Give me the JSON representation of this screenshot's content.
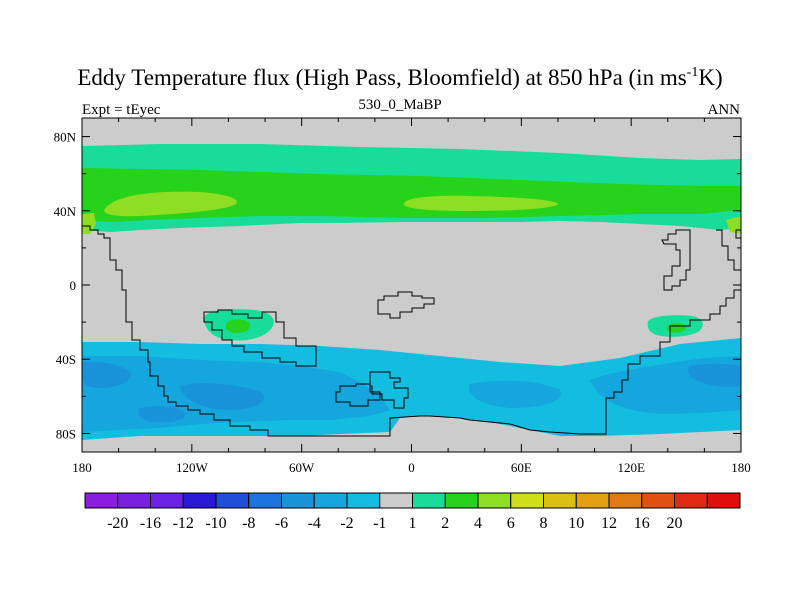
{
  "title": {
    "before_sup": "Eddy Temperature flux (High Pass, Bloomfield) at 850 hPa (in ms",
    "sup": "-1",
    "after_sup": "K)"
  },
  "subtitle_left": "Expt = tEyec",
  "subtitle_center": "530_0_MaBP",
  "subtitle_right": "ANN",
  "map": {
    "lon_range": [
      -180,
      180
    ],
    "lat_range": [
      -90,
      90
    ],
    "x_ticks": [
      {
        "lon": -180,
        "label": "180"
      },
      {
        "lon": -120,
        "label": "120W"
      },
      {
        "lon": -60,
        "label": "60W"
      },
      {
        "lon": 0,
        "label": "0"
      },
      {
        "lon": 60,
        "label": "60E"
      },
      {
        "lon": 120,
        "label": "120E"
      },
      {
        "lon": 180,
        "label": "180"
      }
    ],
    "y_ticks": [
      {
        "lat": 80,
        "label": "80N"
      },
      {
        "lat": 40,
        "label": "40N"
      },
      {
        "lat": 0,
        "label": "0"
      },
      {
        "lat": -40,
        "label": "40S"
      },
      {
        "lat": -80,
        "label": "80S"
      }
    ],
    "background_color": "#cccccc",
    "coastline_color": "#000000"
  },
  "colorbar": {
    "colors": [
      "#8a1de0",
      "#7a20e0",
      "#6a23e6",
      "#2a18d8",
      "#1f4fd8",
      "#1d74dd",
      "#1994da",
      "#16a6de",
      "#12bde0",
      "#cccccc",
      "#18dc9a",
      "#26d21a",
      "#8ede24",
      "#cfe01a",
      "#dcc010",
      "#e2a012",
      "#e07a12",
      "#e05010",
      "#e22a12",
      "#e00d0d"
    ],
    "labels": [
      "-20",
      "-16",
      "-12",
      "-10",
      "-8",
      "-6",
      "-4",
      "-2",
      "-1",
      "1",
      "2",
      "4",
      "6",
      "8",
      "10",
      "12",
      "16",
      "20"
    ]
  }
}
